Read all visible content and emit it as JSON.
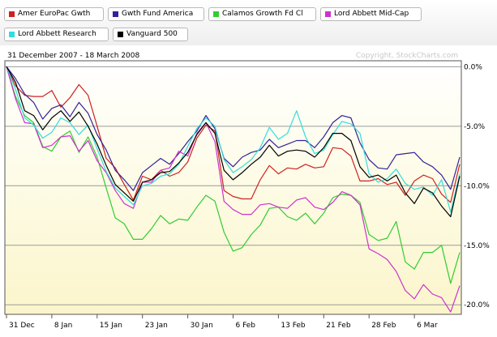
{
  "chart_data": {
    "type": "line",
    "title": "31 December 2007 - 18 March 2008",
    "watermark": "Copyright, StockCharts.com",
    "x_labels": [
      "31 Dec",
      "8 Jan",
      "15 Jan",
      "23 Jan",
      "30 Jan",
      "6 Feb",
      "13 Feb",
      "21 Feb",
      "28 Feb",
      "6 Mar"
    ],
    "y_tick_labels": [
      "0.0%",
      "-5.0%",
      "-10.0%",
      "-15.0%",
      "-20.0%"
    ],
    "ylim": [
      -20.8,
      0.5
    ],
    "grid": true,
    "legend_position": "top",
    "series": [
      {
        "name": "Amer EuroPac Gwth",
        "color": "#cc2222",
        "values": [
          0.0,
          -1.6,
          -2.4,
          -2.5,
          -2.5,
          -2.0,
          -3.4,
          -2.6,
          -1.5,
          -2.4,
          -5.0,
          -7.7,
          -8.5,
          -9.9,
          -11.2,
          -9.2,
          -9.5,
          -8.7,
          -9.2,
          -8.9,
          -8.0,
          -6.0,
          -4.9,
          -5.4,
          -10.4,
          -10.9,
          -11.1,
          -11.1,
          -9.5,
          -8.3,
          -9.0,
          -8.5,
          -8.6,
          -8.2,
          -8.5,
          -8.4,
          -6.8,
          -6.9,
          -7.5,
          -9.6,
          -9.6,
          -9.4,
          -9.9,
          -9.7,
          -10.8,
          -9.6,
          -9.1,
          -9.4,
          -10.7,
          -11.4,
          -8.2
        ]
      },
      {
        "name": "Gwth Fund America",
        "color": "#332299",
        "values": [
          0.0,
          -1.0,
          -2.3,
          -3.0,
          -4.4,
          -3.5,
          -3.2,
          -4.2,
          -3.0,
          -3.9,
          -5.7,
          -7.0,
          -8.7,
          -9.5,
          -10.4,
          -8.9,
          -8.3,
          -7.7,
          -8.2,
          -7.3,
          -6.3,
          -5.4,
          -4.1,
          -5.2,
          -7.7,
          -8.4,
          -7.6,
          -7.2,
          -7.0,
          -6.1,
          -6.8,
          -6.5,
          -6.2,
          -6.2,
          -6.8,
          -5.9,
          -4.7,
          -4.1,
          -4.3,
          -6.4,
          -7.8,
          -8.5,
          -8.6,
          -7.4,
          -7.3,
          -7.2,
          -8.0,
          -8.4,
          -9.1,
          -10.3,
          -7.6
        ]
      },
      {
        "name": "Calamos Growth Fd Cl",
        "color": "#33cc33",
        "values": [
          0.0,
          -2.5,
          -4.1,
          -4.7,
          -6.7,
          -7.1,
          -5.9,
          -5.4,
          -7.2,
          -5.9,
          -7.6,
          -10.2,
          -12.7,
          -13.2,
          -14.5,
          -14.5,
          -13.6,
          -12.5,
          -13.2,
          -12.8,
          -12.9,
          -11.8,
          -10.8,
          -11.3,
          -13.9,
          -15.5,
          -15.2,
          -14.1,
          -13.3,
          -11.9,
          -11.8,
          -12.6,
          -12.9,
          -12.3,
          -13.2,
          -12.3,
          -11.0,
          -10.7,
          -10.8,
          -11.4,
          -14.1,
          -14.6,
          -14.4,
          -13.0,
          -16.4,
          -17.0,
          -15.6,
          -15.6,
          -15.0,
          -18.2,
          -15.6
        ]
      },
      {
        "name": "Lord Abbett Mid-Cap",
        "color": "#cc33cc",
        "values": [
          0.0,
          -2.7,
          -4.7,
          -4.8,
          -6.8,
          -6.6,
          -5.9,
          -5.8,
          -7.1,
          -6.2,
          -7.9,
          -8.9,
          -10.4,
          -11.5,
          -11.9,
          -9.7,
          -9.7,
          -8.7,
          -8.5,
          -7.1,
          -7.5,
          -5.6,
          -4.7,
          -6.3,
          -11.3,
          -12.0,
          -12.4,
          -12.4,
          -11.6,
          -11.5,
          -11.8,
          -11.9,
          -11.2,
          -11.0,
          -11.8,
          -12.0,
          -11.4,
          -10.5,
          -10.8,
          -11.6,
          -15.3,
          -15.7,
          -16.2,
          -17.2,
          -18.8,
          -19.5,
          -18.3,
          -19.1,
          -19.4,
          -20.6,
          -18.4
        ]
      },
      {
        "name": "Lord Abbett Research",
        "color": "#33dddd",
        "values": [
          0.0,
          -1.9,
          -4.3,
          -4.9,
          -6.0,
          -5.5,
          -4.3,
          -4.7,
          -5.7,
          -4.9,
          -6.9,
          -8.8,
          -10.2,
          -10.9,
          -11.6,
          -10.0,
          -9.8,
          -9.2,
          -9.0,
          -8.2,
          -6.7,
          -5.2,
          -4.3,
          -5.0,
          -7.8,
          -8.9,
          -8.4,
          -7.8,
          -6.8,
          -5.1,
          -6.1,
          -5.6,
          -3.7,
          -5.9,
          -7.3,
          -7.0,
          -5.7,
          -4.6,
          -4.8,
          -5.6,
          -9.0,
          -9.7,
          -9.4,
          -8.6,
          -9.8,
          -10.3,
          -10.1,
          -10.8,
          -9.5,
          -12.2,
          -9.0
        ]
      },
      {
        "name": "Vanguard 500",
        "color": "#000000",
        "values": [
          0.0,
          -1.3,
          -3.7,
          -4.1,
          -5.3,
          -4.3,
          -3.7,
          -4.6,
          -3.8,
          -5.0,
          -6.5,
          -8.3,
          -9.9,
          -10.6,
          -11.3,
          -9.7,
          -9.5,
          -8.9,
          -8.8,
          -8.1,
          -7.2,
          -5.7,
          -4.7,
          -5.6,
          -8.7,
          -9.5,
          -8.9,
          -8.2,
          -7.6,
          -6.6,
          -7.5,
          -7.1,
          -7.0,
          -7.1,
          -7.6,
          -6.8,
          -5.6,
          -5.6,
          -6.2,
          -8.4,
          -9.3,
          -9.1,
          -9.6,
          -9.1,
          -10.6,
          -11.5,
          -10.2,
          -10.6,
          -11.7,
          -12.6,
          -9.2
        ]
      }
    ]
  }
}
